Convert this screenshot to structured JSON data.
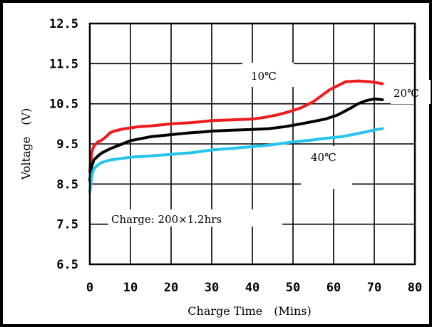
{
  "chart_data": {
    "type": "line",
    "xlabel": "Charge Time　(Mins)",
    "ylabel": "Voltage　(V)",
    "xlim": [
      0,
      80
    ],
    "ylim": [
      6.5,
      12.5
    ],
    "x_ticks": [
      "0",
      "10",
      "20",
      "30",
      "40",
      "50",
      "60",
      "70",
      "80"
    ],
    "y_ticks": [
      "12.5",
      "11.5",
      "10.5",
      "9.5",
      "8.5",
      "7.5",
      "6.5"
    ],
    "grid": true,
    "annotation": "Charge: 200×1.2hrs",
    "series": [
      {
        "label": "10℃",
        "color": "#ee1c1c",
        "points": [
          [
            0,
            8.8
          ],
          [
            0.5,
            9.3
          ],
          [
            1,
            9.45
          ],
          [
            2,
            9.55
          ],
          [
            3,
            9.6
          ],
          [
            4,
            9.68
          ],
          [
            5,
            9.78
          ],
          [
            6,
            9.82
          ],
          [
            8,
            9.87
          ],
          [
            10,
            9.9
          ],
          [
            12,
            9.93
          ],
          [
            15,
            9.95
          ],
          [
            18,
            9.98
          ],
          [
            20,
            10.0
          ],
          [
            25,
            10.03
          ],
          [
            28,
            10.06
          ],
          [
            30,
            10.08
          ],
          [
            35,
            10.1
          ],
          [
            40,
            10.12
          ],
          [
            43,
            10.16
          ],
          [
            46,
            10.22
          ],
          [
            49,
            10.3
          ],
          [
            52,
            10.4
          ],
          [
            55,
            10.55
          ],
          [
            57,
            10.7
          ],
          [
            59,
            10.85
          ],
          [
            61,
            10.95
          ],
          [
            63,
            11.05
          ],
          [
            66,
            11.07
          ],
          [
            69,
            11.05
          ],
          [
            72,
            11.0
          ]
        ]
      },
      {
        "label": "20℃",
        "color": "#000000",
        "points": [
          [
            0,
            8.6
          ],
          [
            0.5,
            8.95
          ],
          [
            1,
            9.1
          ],
          [
            2,
            9.2
          ],
          [
            3,
            9.28
          ],
          [
            5,
            9.38
          ],
          [
            8,
            9.5
          ],
          [
            10,
            9.58
          ],
          [
            12,
            9.62
          ],
          [
            15,
            9.68
          ],
          [
            20,
            9.73
          ],
          [
            25,
            9.78
          ],
          [
            28,
            9.8
          ],
          [
            30,
            9.82
          ],
          [
            35,
            9.84
          ],
          [
            40,
            9.86
          ],
          [
            44,
            9.88
          ],
          [
            48,
            9.93
          ],
          [
            52,
            10.0
          ],
          [
            55,
            10.06
          ],
          [
            58,
            10.12
          ],
          [
            61,
            10.22
          ],
          [
            64,
            10.38
          ],
          [
            66,
            10.5
          ],
          [
            68,
            10.58
          ],
          [
            70,
            10.62
          ],
          [
            72,
            10.6
          ]
        ]
      },
      {
        "label": "40℃",
        "color": "#24c4ee",
        "points": [
          [
            0,
            8.3
          ],
          [
            0.5,
            8.72
          ],
          [
            1,
            8.88
          ],
          [
            2,
            8.98
          ],
          [
            3,
            9.04
          ],
          [
            5,
            9.1
          ],
          [
            8,
            9.14
          ],
          [
            10,
            9.17
          ],
          [
            15,
            9.2
          ],
          [
            20,
            9.24
          ],
          [
            25,
            9.28
          ],
          [
            28,
            9.32
          ],
          [
            30,
            9.35
          ],
          [
            35,
            9.39
          ],
          [
            40,
            9.43
          ],
          [
            45,
            9.48
          ],
          [
            50,
            9.55
          ],
          [
            55,
            9.6
          ],
          [
            58,
            9.64
          ],
          [
            62,
            9.68
          ],
          [
            65,
            9.74
          ],
          [
            68,
            9.8
          ],
          [
            70,
            9.85
          ],
          [
            72,
            9.88
          ]
        ]
      }
    ]
  }
}
